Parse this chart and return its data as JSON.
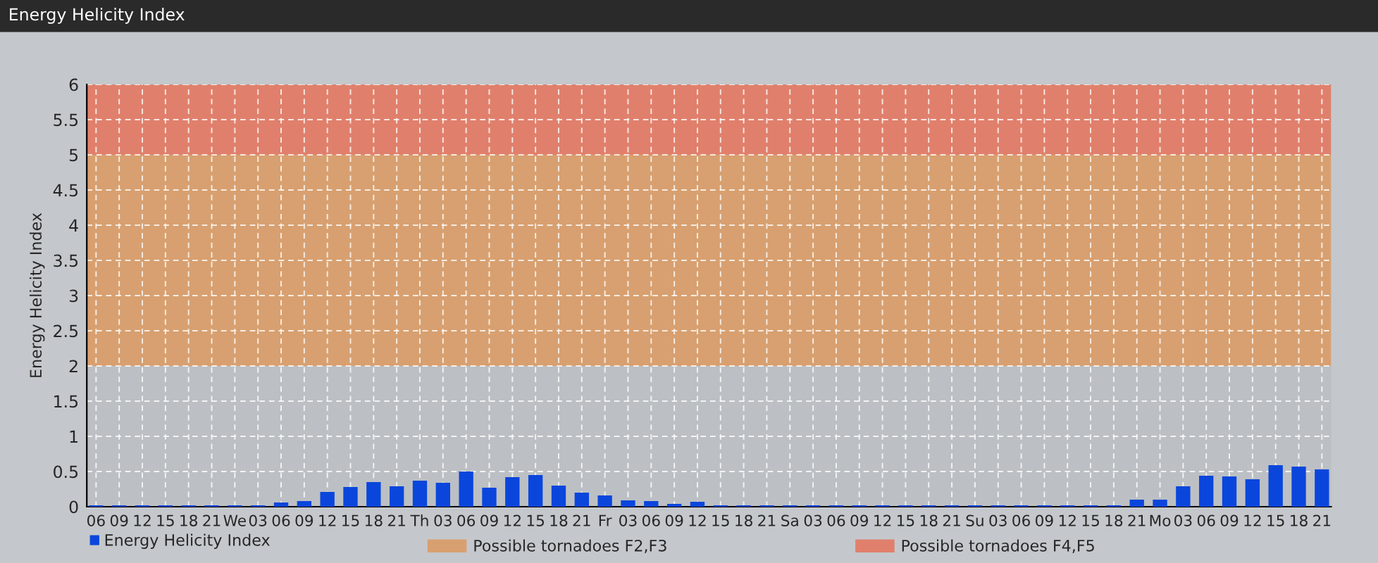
{
  "chart_data": {
    "type": "bar",
    "title": "Energy Helicity Index",
    "ylabel": "Energy Helicity Index",
    "categories": [
      "06",
      "09",
      "12",
      "15",
      "18",
      "21",
      "We",
      "03",
      "06",
      "09",
      "12",
      "15",
      "18",
      "21",
      "Th",
      "03",
      "06",
      "09",
      "12",
      "15",
      "18",
      "21",
      "Fr",
      "03",
      "06",
      "09",
      "12",
      "15",
      "18",
      "21",
      "Sa",
      "03",
      "06",
      "09",
      "12",
      "15",
      "18",
      "21",
      "Su",
      "03",
      "06",
      "09",
      "12",
      "15",
      "18",
      "21",
      "Mo",
      "03",
      "06",
      "09",
      "12",
      "15",
      "18",
      "21"
    ],
    "series": [
      {
        "name": "Energy Helicity Index",
        "color": "#0a46dc",
        "values": [
          0.02,
          0.02,
          0.02,
          0.02,
          0.02,
          0.02,
          0.02,
          0.02,
          0.06,
          0.08,
          0.21,
          0.28,
          0.35,
          0.29,
          0.37,
          0.34,
          0.5,
          0.27,
          0.42,
          0.45,
          0.3,
          0.2,
          0.16,
          0.09,
          0.08,
          0.04,
          0.07,
          0.02,
          0.02,
          0.02,
          0.02,
          0.02,
          0.02,
          0.02,
          0.02,
          0.02,
          0.02,
          0.02,
          0.02,
          0.02,
          0.02,
          0.02,
          0.02,
          0.02,
          0.02,
          0.1,
          0.1,
          0.29,
          0.44,
          0.43,
          0.39,
          0.59,
          0.57,
          0.53
        ]
      }
    ],
    "ylim": [
      0,
      6
    ],
    "yticks": [
      0,
      0.5,
      1,
      1.5,
      2,
      2.5,
      3,
      3.5,
      4,
      4.5,
      5,
      5.5,
      6
    ],
    "bands": [
      {
        "axis": "y",
        "from": 2,
        "to": 5,
        "label": "Possible tornadoes F2,F3",
        "color": "#d8a070"
      },
      {
        "axis": "y",
        "from": 5,
        "to": 6,
        "label": "Possible tornadoes F4,F5",
        "color": "#e0806c"
      }
    ],
    "grid": true,
    "legend": "bottom left"
  }
}
